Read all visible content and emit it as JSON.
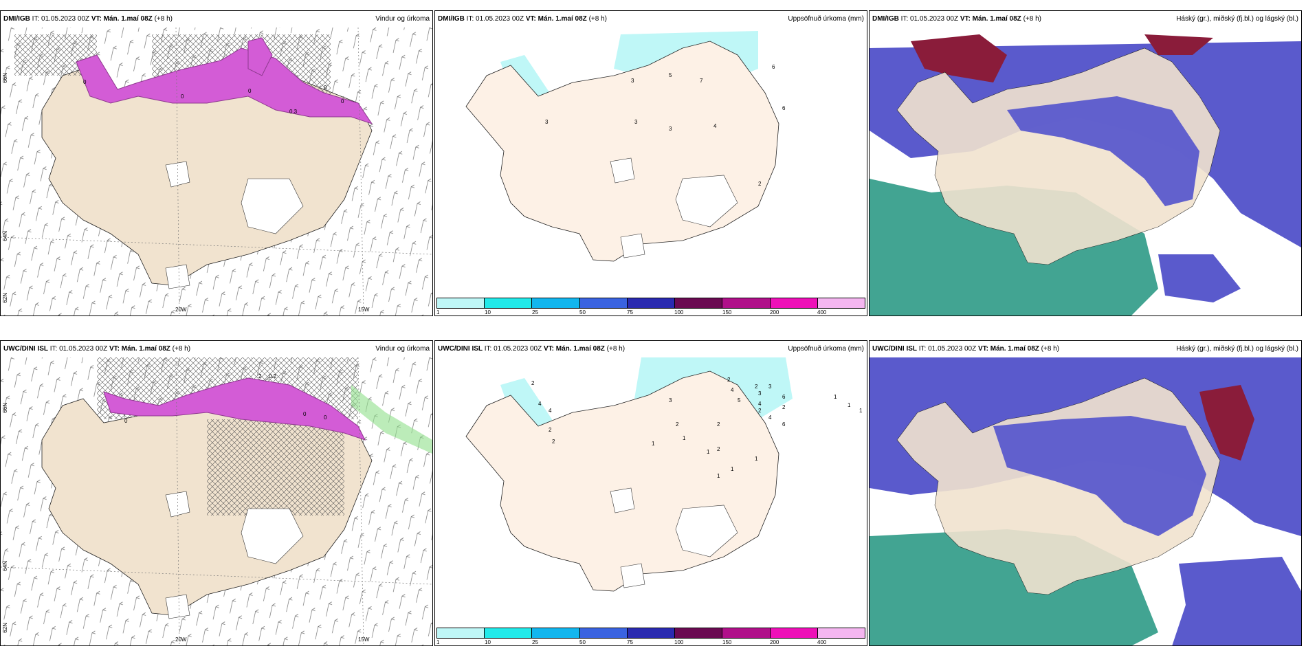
{
  "panels": [
    {
      "model": "DMI/IGB",
      "it_label": "IT:",
      "it_value": "01.05.2023 00Z",
      "vt_label": "VT:",
      "vt_value": "Mán. 1.maí 08Z",
      "lead": "(+8 h)",
      "product": "Vindur og úrkoma"
    },
    {
      "model": "DMI/IGB",
      "it_label": "IT:",
      "it_value": "01.05.2023 00Z",
      "vt_label": "VT:",
      "vt_value": "Mán. 1.maí 08Z",
      "lead": "(+8 h)",
      "product": "Uppsöfnuð úrkoma (mm)"
    },
    {
      "model": "DMI/IGB",
      "it_label": "IT:",
      "it_value": "01.05.2023 00Z",
      "vt_label": "VT:",
      "vt_value": "Mán. 1.maí 08Z",
      "lead": "(+8 h)",
      "product": "Háský (gr.), miðský (fj.bl.) og lágský (bl.)"
    },
    {
      "model": "UWC/DINI ISL",
      "it_label": "IT:",
      "it_value": "01.05.2023 00Z",
      "vt_label": "VT:",
      "vt_value": "Mán. 1.maí 08Z",
      "lead": "(+8 h)",
      "product": "Vindur og úrkoma"
    },
    {
      "model": "UWC/DINI ISL",
      "it_label": "IT:",
      "it_value": "01.05.2023 00Z",
      "vt_label": "VT:",
      "vt_value": "Mán. 1.maí 08Z",
      "lead": "(+8 h)",
      "product": "Uppsöfnuð úrkoma (mm)"
    },
    {
      "model": "UWC/DINI ISL",
      "it_label": "IT:",
      "it_value": "01.05.2023 00Z",
      "vt_label": "VT:",
      "vt_value": "Mán. 1.maí 08Z",
      "lead": "(+8 h)",
      "product": "Háský (gr.), miðský (fj.bl.) og lágský (bl.)"
    }
  ],
  "axes": {
    "lat66": "66N",
    "lat64": "64N",
    "lat62": "62N",
    "lon20": "20W",
    "lon15": "15W"
  },
  "legend": {
    "ticks": [
      "1",
      "10",
      "25",
      "50",
      "75",
      "100",
      "150",
      "200",
      "400"
    ],
    "colors": [
      "#bff7f7",
      "#22eaea",
      "#12b6ee",
      "#3a63e0",
      "#2a2ab0",
      "#6a0a52",
      "#b0108a",
      "#ee10b8",
      "#f4b6f0"
    ]
  },
  "precip_labels_top": [
    "3",
    "3",
    "5",
    "7",
    "3",
    "3",
    "4",
    "6",
    "2",
    "6"
  ],
  "precip_labels_bottom": [
    "2",
    "4",
    "2",
    "2",
    "4",
    "3",
    "2",
    "4",
    "5",
    "2",
    "4",
    "3",
    "6",
    "2",
    "1",
    "1",
    "1",
    "2",
    "1",
    "2",
    "1",
    "1",
    "2",
    "1",
    "2",
    "6",
    "1",
    "1",
    "4",
    "3"
  ],
  "wind_labels_top": [
    "0",
    "0.3",
    "0",
    "0",
    "0",
    "0"
  ],
  "wind_labels_bottom": [
    "2",
    "0.2",
    "0",
    "0",
    "0"
  ],
  "colors": {
    "land": "#f1e3cf",
    "land_precip": "#fdf1e6",
    "sea_wind": "#ffffff",
    "precip_cyan": "#bff7f7",
    "precip_magenta": "#d35cd6",
    "precip_dark": "#8e3a8e",
    "cloud_high": "#8a1c3a",
    "cloud_mid": "#5a5acc",
    "cloud_low": "#2e9a86"
  }
}
